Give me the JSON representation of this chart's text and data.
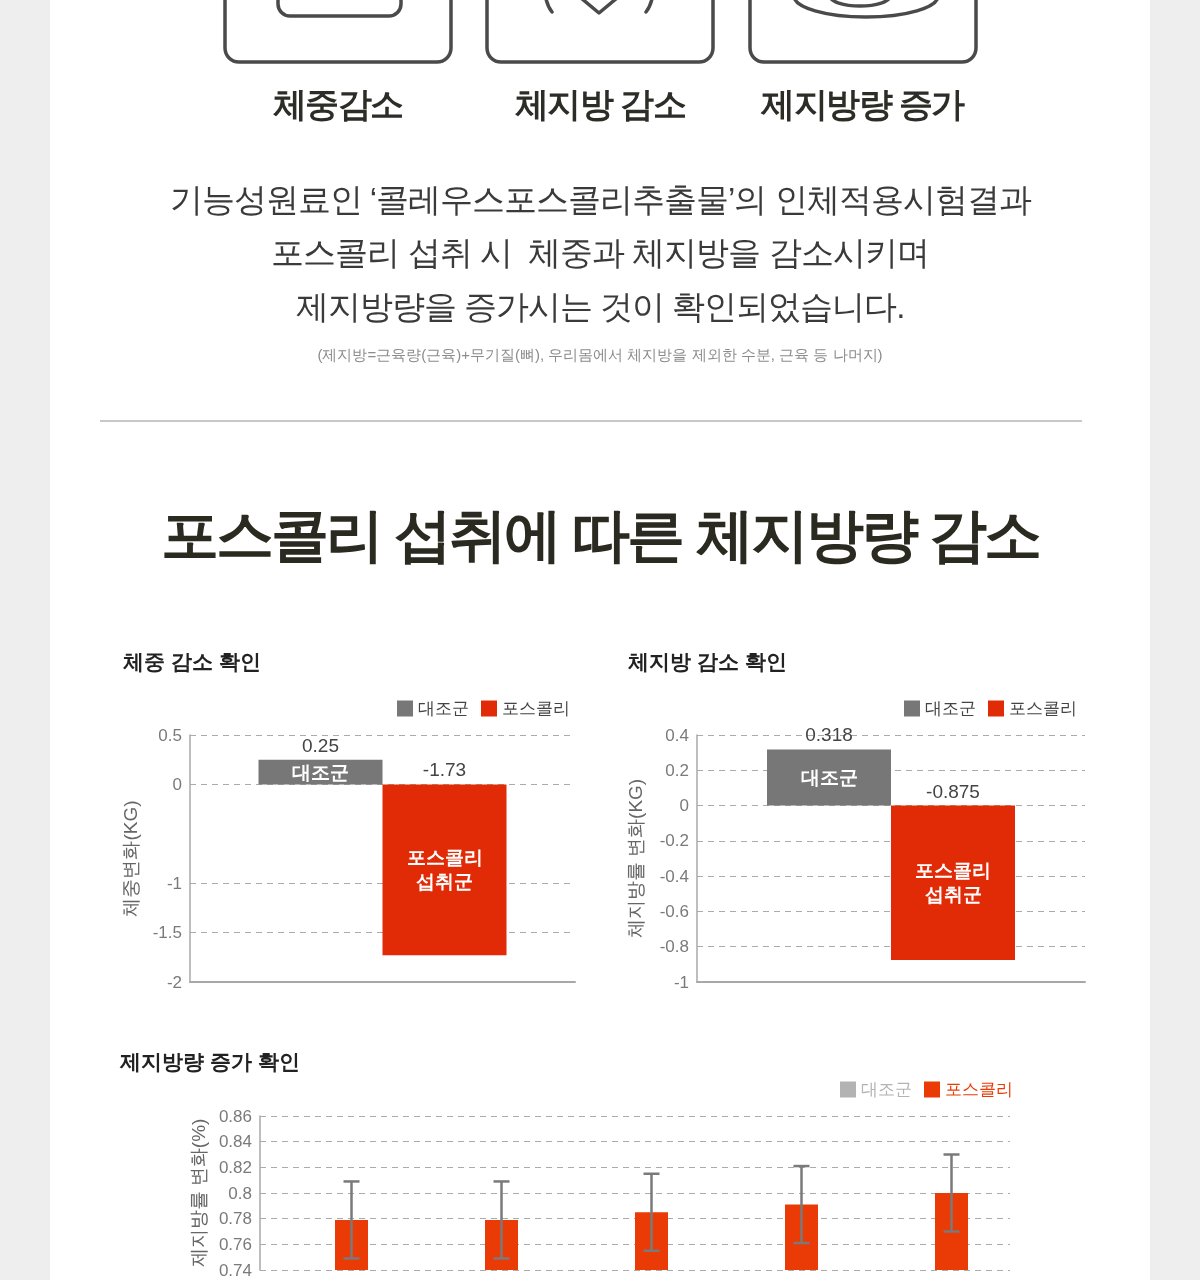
{
  "chart_data": [
    {
      "type": "other",
      "annotations": [
        "체중감소",
        "체지방 감소",
        "제지방량 증가",
        "기능성원료인 ‘콜레우스포스콜리추출물’의 인체적용시험결과",
        "포스콜리 섭취 시  체중과 체지방을 감소시키며",
        "제지방량을 증가시는 것이 확인되었습니다.",
        "(제지방=근육량(근육)+무기질(뼈), 우리몸에서 체지방을 제외한 수분, 근육 등 나머지)"
      ]
    },
    {
      "type": "other",
      "title": "포스콜리 섭취에 따른 체지방량 감소"
    },
    {
      "type": "bar",
      "title": "체중 감소 확인",
      "ylabel": "체중변화(KG)",
      "categories": [
        null
      ],
      "series": [
        {
          "name": "대조군",
          "color": "#777777",
          "values": [
            0.25
          ]
        },
        {
          "name": "포스콜리",
          "color": "#e12a06",
          "values": [
            -1.73
          ]
        }
      ],
      "ylim": [
        -2,
        0.5
      ],
      "yticks": [
        -2,
        -1.5,
        -1,
        0,
        0.5
      ],
      "grid": "y",
      "legend": "top right",
      "data_labels": true,
      "annotations": [
        "대조군",
        "포스콜리 섭취군"
      ]
    },
    {
      "type": "bar",
      "title": "체지방 감소 확인",
      "ylabel": "체지방률 변화(KG)",
      "categories": [
        null
      ],
      "series": [
        {
          "name": "대조군",
          "color": "#777777",
          "values": [
            0.318
          ]
        },
        {
          "name": "포스콜리",
          "color": "#e12a06",
          "values": [
            -0.875
          ]
        }
      ],
      "ylim": [
        -1,
        0.4
      ],
      "yticks": [
        -1,
        -0.8,
        -0.6,
        -0.4,
        -0.2,
        0,
        0.2,
        0.4
      ],
      "grid": "y",
      "legend": "top right",
      "data_labels": true,
      "annotations": [
        "대조군",
        "포스콜리 섭취군"
      ]
    },
    {
      "type": "bar",
      "title": "제지방량 증가 확인",
      "ylabel": "제지방률 변화(%)",
      "categories": [
        null,
        null,
        null,
        null,
        null
      ],
      "series": [
        {
          "name": "대조군",
          "color": "#b3b3b3",
          "values": [
            null,
            null,
            null,
            null,
            null
          ]
        },
        {
          "name": "포스콜리",
          "color": "#ea3a06",
          "values": [
            0.779,
            0.779,
            0.785,
            0.791,
            0.8
          ],
          "errors": [
            0.03,
            0.03,
            0.03,
            0.03,
            0.03
          ]
        }
      ],
      "ylim": [
        0.74,
        0.86
      ],
      "yticks": [
        0.74,
        0.76,
        0.78,
        0.8,
        0.82,
        0.84,
        0.86
      ],
      "grid": "y",
      "legend": "top right"
    }
  ]
}
